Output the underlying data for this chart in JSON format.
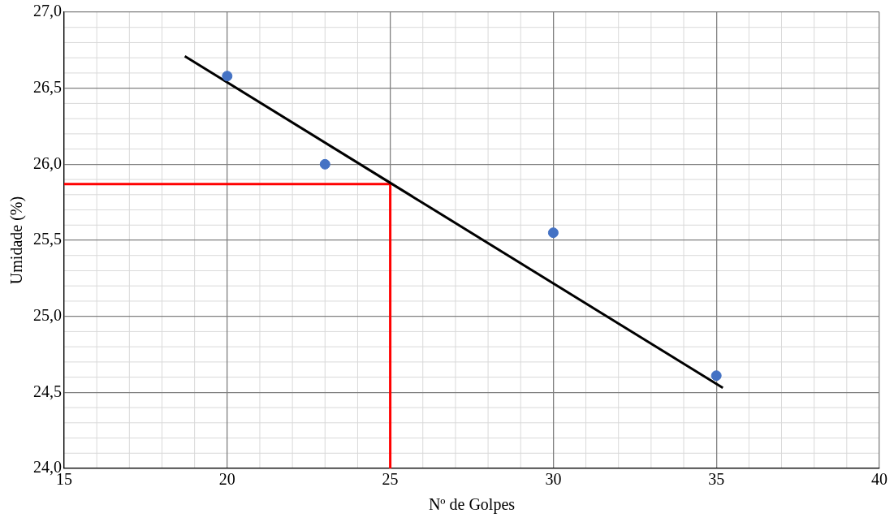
{
  "chart_data": {
    "type": "scatter",
    "xlabel": "Nº de Golpes",
    "ylabel": "Umidade (%)",
    "series": [
      {
        "type": "scatter",
        "color": "#4472c4",
        "x": [
          20,
          23,
          30,
          35
        ],
        "values": [
          26.58,
          26.0,
          25.55,
          24.61
        ]
      },
      {
        "type": "line",
        "marker": "none",
        "color": "#000000",
        "x": [
          18.7,
          35.2
        ],
        "values": [
          26.71,
          24.53
        ]
      },
      {
        "type": "line",
        "marker": "none",
        "color": "#ff0000",
        "x": [
          15,
          25,
          25
        ],
        "values": [
          25.87,
          25.87,
          24.0
        ]
      }
    ],
    "xlim": [
      15,
      40
    ],
    "xticks": [
      15,
      20,
      25,
      30,
      35,
      40
    ],
    "ylim": [
      24.0,
      27.0
    ],
    "yticks": [
      {
        "value": 24.0,
        "label": "24,0"
      },
      {
        "value": 24.5,
        "label": "24,5"
      },
      {
        "value": 25.0,
        "label": "25,0"
      },
      {
        "value": 25.5,
        "label": "25,5"
      },
      {
        "value": 26.0,
        "label": "26,0"
      },
      {
        "value": 26.5,
        "label": "26,5"
      },
      {
        "value": 27.0,
        "label": "27,0"
      }
    ],
    "grid": true,
    "legend": false,
    "marker": "circle"
  }
}
